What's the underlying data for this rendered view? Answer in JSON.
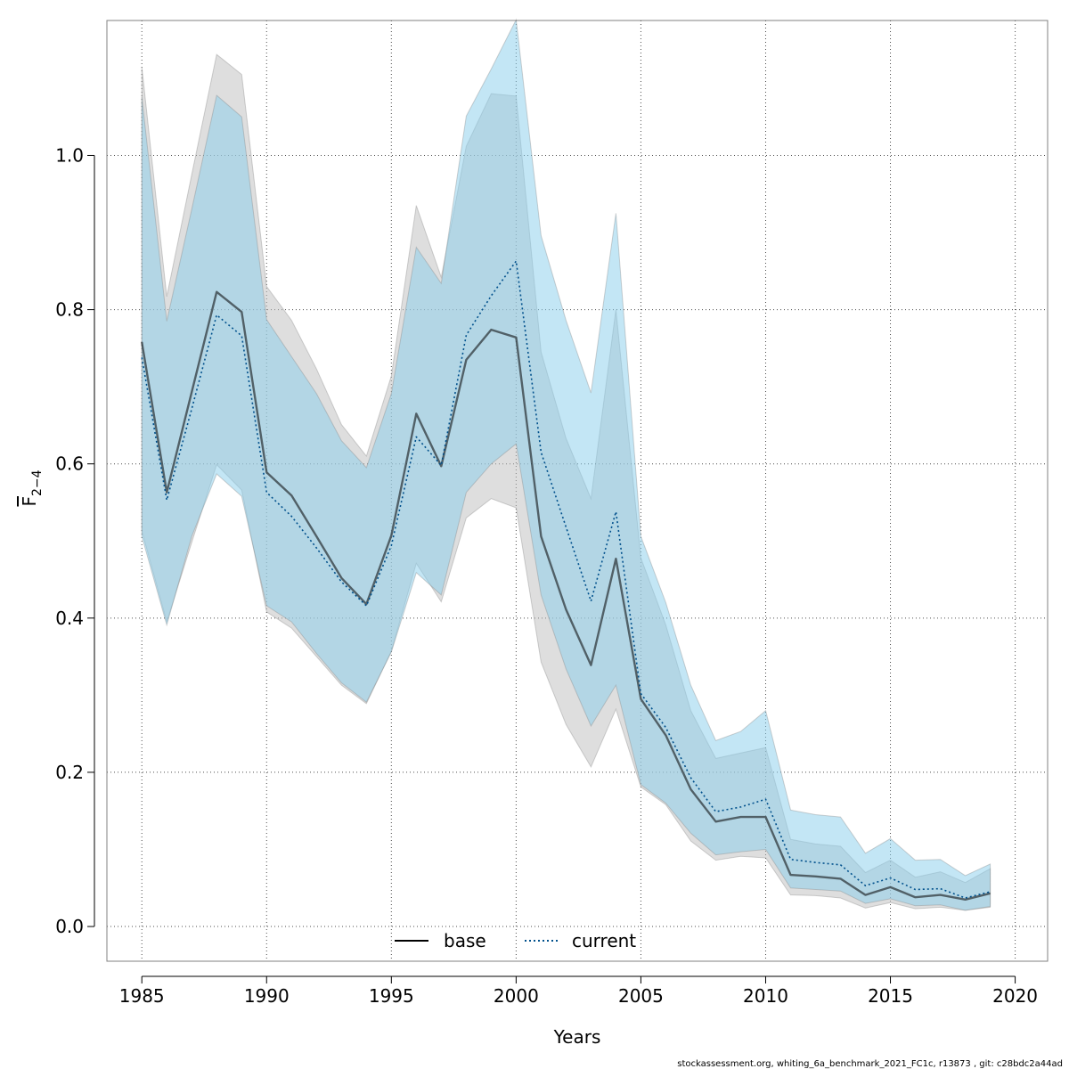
{
  "chart_data": {
    "type": "line",
    "xlabel": "Years",
    "ylabel": {
      "base": "F",
      "sub": "2−4"
    },
    "xlim": [
      1983.6,
      2021.3
    ],
    "ylim": [
      -0.045,
      1.175
    ],
    "xticks": [
      1985,
      1990,
      1995,
      2000,
      2005,
      2010,
      2015,
      2020
    ],
    "yticks": [
      0.0,
      0.2,
      0.4,
      0.6,
      0.8,
      1.0
    ],
    "ytick_labels": [
      "0.0",
      "0.2",
      "0.4",
      "0.6",
      "0.8",
      "1.0"
    ],
    "grid": true,
    "legend_position": "bottom",
    "x": [
      1985,
      1986,
      1987,
      1988,
      1989,
      1990,
      1991,
      1992,
      1993,
      1994,
      1995,
      1996,
      1997,
      1998,
      1999,
      2000,
      2001,
      2002,
      2003,
      2004,
      2005,
      2006,
      2007,
      2008,
      2009,
      2010,
      2011,
      2012,
      2013,
      2014,
      2015,
      2016,
      2017,
      2018,
      2019
    ],
    "series": [
      {
        "name": "base",
        "color": "#000000",
        "band_color": "#bebebe",
        "line_style": "solid",
        "values": [
          0.758,
          0.563,
          0.693,
          0.823,
          0.797,
          0.589,
          0.559,
          0.506,
          0.452,
          0.418,
          0.507,
          0.665,
          0.597,
          0.735,
          0.774,
          0.764,
          0.506,
          0.411,
          0.339,
          0.477,
          0.295,
          0.248,
          0.178,
          0.136,
          0.142,
          0.142,
          0.067,
          0.065,
          0.062,
          0.041,
          0.051,
          0.038,
          0.041,
          0.035,
          0.043
        ],
        "lower": [
          0.513,
          0.395,
          0.498,
          0.599,
          0.566,
          0.408,
          0.387,
          0.35,
          0.313,
          0.289,
          0.357,
          0.471,
          0.421,
          0.53,
          0.555,
          0.543,
          0.343,
          0.262,
          0.207,
          0.282,
          0.181,
          0.158,
          0.111,
          0.086,
          0.091,
          0.089,
          0.041,
          0.04,
          0.037,
          0.024,
          0.031,
          0.023,
          0.025,
          0.021,
          0.025
        ],
        "upper": [
          1.115,
          0.817,
          0.975,
          1.131,
          1.105,
          0.83,
          0.786,
          0.723,
          0.651,
          0.61,
          0.714,
          0.935,
          0.842,
          1.012,
          1.08,
          1.077,
          0.745,
          0.633,
          0.555,
          0.8,
          0.478,
          0.391,
          0.28,
          0.218,
          0.225,
          0.232,
          0.113,
          0.107,
          0.104,
          0.07,
          0.086,
          0.064,
          0.071,
          0.057,
          0.075
        ]
      },
      {
        "name": "current",
        "color": "#00508c",
        "band_color": "#87ceeb",
        "line_style": "dotted",
        "values": [
          0.738,
          0.553,
          0.671,
          0.793,
          0.766,
          0.563,
          0.532,
          0.491,
          0.447,
          0.416,
          0.494,
          0.635,
          0.598,
          0.767,
          0.818,
          0.863,
          0.615,
          0.518,
          0.422,
          0.538,
          0.302,
          0.258,
          0.193,
          0.149,
          0.155,
          0.165,
          0.087,
          0.083,
          0.08,
          0.053,
          0.063,
          0.048,
          0.049,
          0.037,
          0.045
        ],
        "lower": [
          0.506,
          0.391,
          0.506,
          0.587,
          0.558,
          0.416,
          0.395,
          0.354,
          0.316,
          0.291,
          0.356,
          0.459,
          0.43,
          0.563,
          0.6,
          0.626,
          0.43,
          0.334,
          0.26,
          0.313,
          0.184,
          0.16,
          0.121,
          0.093,
          0.097,
          0.1,
          0.05,
          0.048,
          0.046,
          0.03,
          0.036,
          0.027,
          0.028,
          0.021,
          0.026
        ],
        "upper": [
          1.076,
          0.785,
          0.93,
          1.078,
          1.05,
          0.787,
          0.739,
          0.691,
          0.63,
          0.595,
          0.691,
          0.881,
          0.834,
          1.051,
          1.112,
          1.176,
          0.896,
          0.786,
          0.692,
          0.925,
          0.506,
          0.42,
          0.313,
          0.241,
          0.253,
          0.28,
          0.151,
          0.145,
          0.142,
          0.095,
          0.114,
          0.086,
          0.087,
          0.066,
          0.081
        ]
      }
    ]
  },
  "footer": "stockassessment.org, whiting_6a_benchmark_2021_FC1c, r13873 , git: c28bdc2a44ad"
}
